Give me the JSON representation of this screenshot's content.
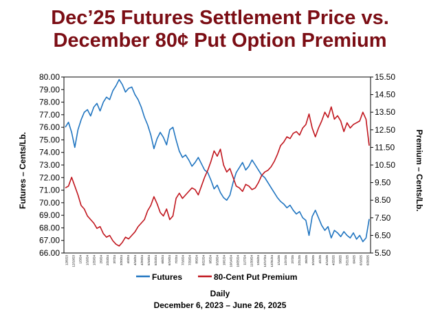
{
  "title_line1": "Dec’25 Futures Settlement Price vs.",
  "title_line2": "December 80¢ Put Option Premium",
  "xlabel": "Daily",
  "date_range": "December 6, 2023 – June 26, 2025",
  "chart_data": {
    "type": "line",
    "title": "Dec’25 Futures Settlement Price vs. December 80¢ Put Option Premium",
    "y_left_label": "Futures – Cents/Lb.",
    "y_right_label": "Premium – Cents/Lb.",
    "y_left_lim": [
      66.0,
      80.0
    ],
    "y_left_ticks": [
      "80.00",
      "79.00",
      "78.00",
      "77.00",
      "76.00",
      "75.00",
      "74.00",
      "73.00",
      "72.00",
      "71.00",
      "70.00",
      "69.00",
      "68.00",
      "67.00",
      "66.00"
    ],
    "y_right_lim": [
      5.5,
      15.5
    ],
    "y_right_ticks": [
      "15.50",
      "14.50",
      "13.50",
      "12.50",
      "11.50",
      "10.50",
      "9.50",
      "8.50",
      "7.50",
      "6.50",
      "5.50"
    ],
    "x_tick_labels": [
      "12/6/23",
      "12/19/23",
      "1/3/24",
      "1/16/24",
      "1/29/24",
      "2/9/24",
      "2/23/24",
      "3/7/24",
      "3/20/24",
      "4/3/24",
      "4/16/24",
      "4/29/24",
      "5/10/24",
      "5/23/24",
      "6/6/24",
      "6/19/24",
      "7/2/24",
      "7/16/24",
      "7/29/24",
      "8/9/24",
      "8/22/24",
      "9/5/24",
      "9/18/24",
      "10/1/24",
      "10/14/24",
      "10/25/24",
      "11/7/24",
      "11/20/24",
      "12/4/24",
      "12/17/24",
      "12/31/24",
      "1/14/25",
      "1/27/25",
      "2/7/25",
      "2/21/25",
      "3/6/25",
      "3/19/25",
      "4/1/25",
      "4/14/25",
      "4/25/25",
      "5/8/25",
      "5/21/25",
      "6/4/25",
      "6/16/25",
      "6/26/25"
    ],
    "grid": false,
    "legend_position": "bottom",
    "series": [
      {
        "name": "Futures",
        "axis": "left",
        "color": "#1f74c0",
        "values": [
          76.0,
          76.4,
          75.6,
          74.4,
          75.8,
          76.6,
          77.2,
          77.4,
          76.9,
          77.6,
          77.9,
          77.3,
          78.0,
          78.4,
          78.2,
          78.9,
          79.3,
          79.8,
          79.4,
          78.8,
          79.1,
          79.2,
          78.6,
          78.2,
          77.6,
          76.8,
          76.2,
          75.4,
          74.3,
          75.1,
          75.6,
          75.2,
          74.6,
          75.8,
          76.0,
          75.0,
          74.1,
          73.6,
          73.8,
          73.4,
          72.9,
          73.2,
          73.6,
          73.1,
          72.6,
          72.4,
          71.8,
          71.1,
          71.4,
          70.8,
          70.4,
          70.2,
          70.6,
          71.6,
          72.4,
          72.8,
          73.2,
          72.6,
          72.9,
          73.4,
          73.0,
          72.6,
          72.2,
          72.0,
          71.6,
          71.2,
          70.8,
          70.4,
          70.1,
          69.9,
          69.6,
          69.8,
          69.4,
          69.1,
          69.3,
          68.8,
          68.6,
          67.4,
          68.9,
          69.4,
          68.8,
          68.2,
          67.8,
          68.1,
          67.2,
          67.8,
          67.6,
          67.3,
          67.7,
          67.4,
          67.2,
          67.6,
          67.1,
          67.4,
          66.9,
          67.2,
          68.7
        ]
      },
      {
        "name": "80-Cent Put Premium",
        "axis": "right",
        "color": "#c0141c",
        "values": [
          9.2,
          9.3,
          9.8,
          9.3,
          8.8,
          8.2,
          8.0,
          7.6,
          7.4,
          7.2,
          6.9,
          7.0,
          6.6,
          6.4,
          6.5,
          6.2,
          6.0,
          5.9,
          6.1,
          6.4,
          6.3,
          6.5,
          6.7,
          7.0,
          7.2,
          7.4,
          7.9,
          8.2,
          8.7,
          8.3,
          7.8,
          7.6,
          8.0,
          7.4,
          7.6,
          8.6,
          8.9,
          8.6,
          8.8,
          9.0,
          9.2,
          9.1,
          8.8,
          9.3,
          9.8,
          10.2,
          10.7,
          11.3,
          11.0,
          11.4,
          10.5,
          10.1,
          10.3,
          9.8,
          9.3,
          9.2,
          9.0,
          9.4,
          9.3,
          9.1,
          9.2,
          9.5,
          9.9,
          10.1,
          10.2,
          10.4,
          10.7,
          11.1,
          11.6,
          11.8,
          12.1,
          12.0,
          12.3,
          12.4,
          12.2,
          12.6,
          12.8,
          13.4,
          12.6,
          12.1,
          12.6,
          13.0,
          13.5,
          13.2,
          13.8,
          13.1,
          13.3,
          13.0,
          12.4,
          12.9,
          12.6,
          12.8,
          12.9,
          13.0,
          13.5,
          13.1,
          11.6
        ]
      }
    ]
  }
}
